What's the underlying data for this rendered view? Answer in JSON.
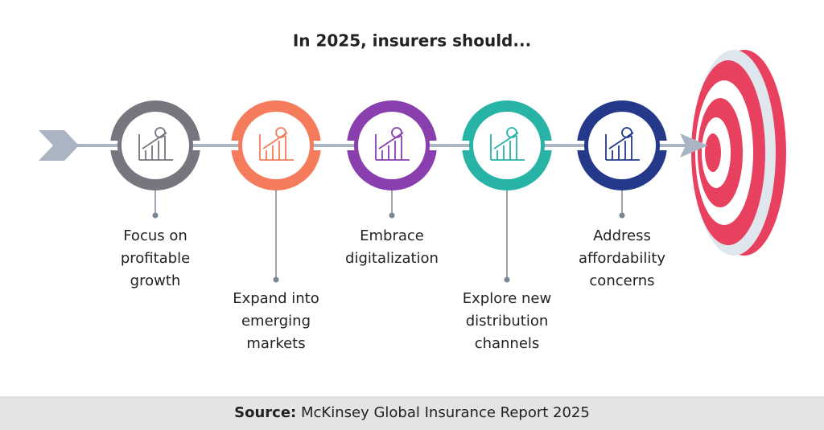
{
  "title": "In 2025, insurers should...",
  "steps": [
    {
      "label": [
        "Focus on",
        "profitable",
        "growth"
      ]
    },
    {
      "label": [
        "Expand into",
        "emerging",
        "markets"
      ]
    },
    {
      "label": [
        "Embrace",
        "digitalization"
      ]
    },
    {
      "label": [
        "Explore new",
        "distribution",
        "channels"
      ]
    },
    {
      "label": [
        "Address",
        "affordability",
        "concerns"
      ]
    }
  ],
  "source": {
    "label": "Source:",
    "text": "McKinsey Global Insurance Report 2025"
  }
}
